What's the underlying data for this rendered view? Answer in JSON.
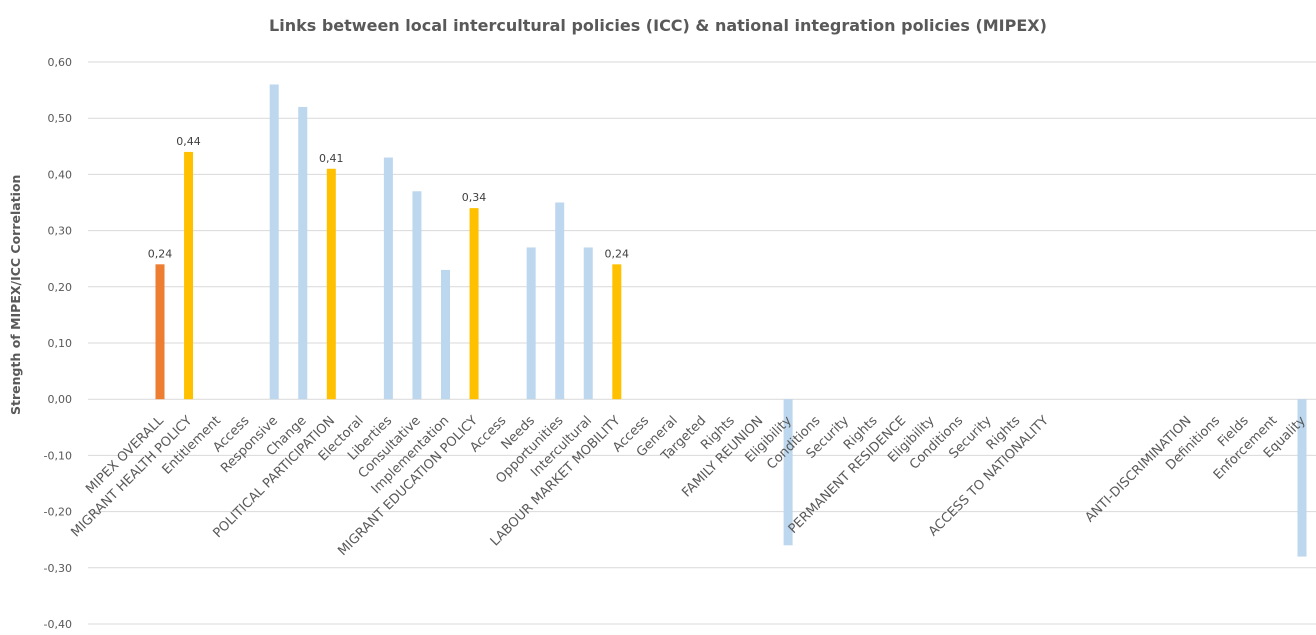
{
  "chart_data": {
    "type": "bar",
    "title": "Links between local intercultural policies (ICC) & national integration policies (MIPEX)",
    "ylabel": "Strength of MIPEX/ICC Correlation",
    "ylim": [
      -0.4,
      0.6
    ],
    "yticks": [
      "0,60",
      "0,50",
      "0,40",
      "0,30",
      "0,20",
      "0,10",
      "0,00",
      "-0,10",
      "-0,20",
      "-0,30",
      "-0,40"
    ],
    "grid": true,
    "colors": {
      "overall": "#ED7D31",
      "section": "#FFC000",
      "indicator": "#BDD7EE"
    },
    "categories": [
      "MIPEX OVERALL",
      "MIGRANT HEALTH POLICY",
      "Entitlement",
      "Access",
      "Responsive",
      "Change",
      "POLITICAL PARTICIPATION",
      "Electoral",
      "Liberties",
      "Consultative",
      "Implementation",
      "MIGRANT EDUCATION POLICY",
      "Access",
      "Needs",
      "Opportunities",
      "Intercultural",
      "LABOUR MARKET MOBILITY",
      "Access",
      "General",
      "Targeted",
      "Rights",
      "FAMILY REUNION",
      "Eligibility",
      "Conditions",
      "Security",
      "Rights",
      "PERMANENT RESIDENCE",
      "Eligibility",
      "Conditions",
      "Security",
      "Rights",
      "ACCESS TO NATIONALITY",
      "",
      "",
      "",
      "",
      "ANTI-DISCRIMINATION",
      "Definitions",
      "Fields",
      "Enforcement",
      "Equality"
    ],
    "values": [
      0.24,
      0.44,
      null,
      null,
      0.56,
      0.52,
      0.41,
      null,
      0.43,
      0.37,
      0.23,
      0.34,
      null,
      0.27,
      0.35,
      0.27,
      0.24,
      null,
      null,
      null,
      null,
      null,
      -0.26,
      null,
      null,
      null,
      null,
      null,
      null,
      null,
      null,
      null,
      null,
      null,
      null,
      null,
      null,
      null,
      null,
      null,
      -0.28
    ],
    "kinds": [
      "overall",
      "section",
      "indicator",
      "indicator",
      "indicator",
      "indicator",
      "section",
      "indicator",
      "indicator",
      "indicator",
      "indicator",
      "section",
      "indicator",
      "indicator",
      "indicator",
      "indicator",
      "section",
      "indicator",
      "indicator",
      "indicator",
      "indicator",
      "section",
      "indicator",
      "indicator",
      "indicator",
      "indicator",
      "section",
      "indicator",
      "indicator",
      "indicator",
      "indicator",
      "section",
      "indicator",
      "indicator",
      "indicator",
      "indicator",
      "section",
      "indicator",
      "indicator",
      "indicator",
      "indicator"
    ],
    "data_labels": [
      "0,24",
      "0,44",
      "",
      "",
      "",
      "",
      "0,41",
      "",
      "",
      "",
      "",
      "0,34",
      "",
      "",
      "",
      "",
      "0,24",
      "",
      "",
      "",
      "",
      "",
      "",
      "",
      "",
      "",
      "",
      "",
      "",
      "",
      "",
      "",
      "",
      "",
      "",
      "",
      "",
      "",
      "",
      "",
      ""
    ]
  }
}
